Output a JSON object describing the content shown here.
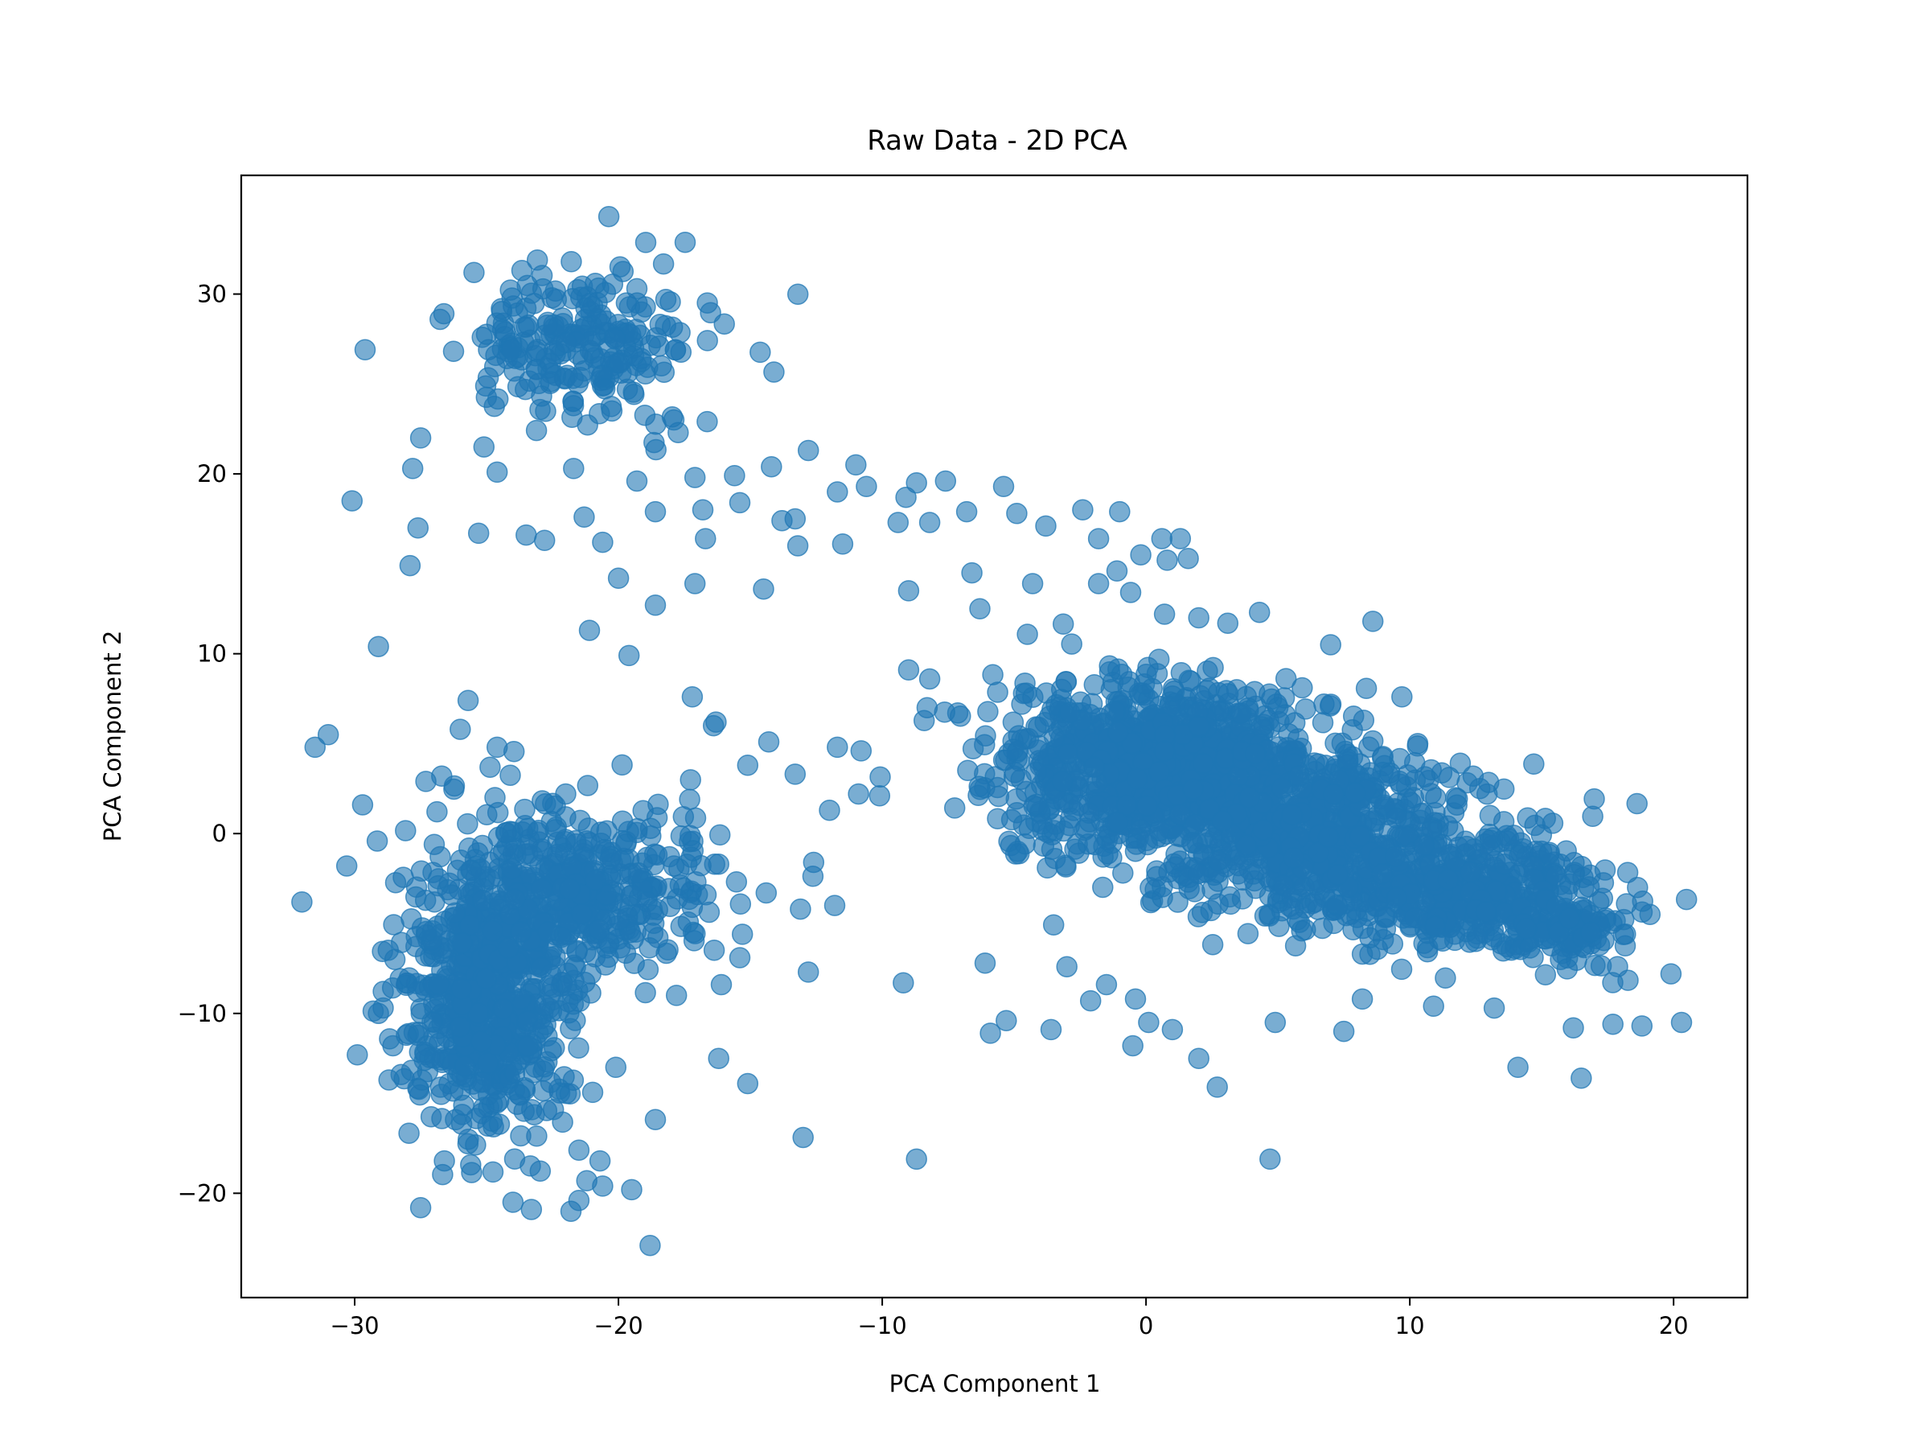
{
  "chart_data": {
    "type": "scatter",
    "title": "Raw Data - 2D PCA",
    "xlabel": "PCA Component 1",
    "ylabel": "PCA Component 2",
    "xlim": [
      -34.3,
      22.8
    ],
    "ylim": [
      -25.8,
      36.6
    ],
    "x_ticks": [
      -30,
      -20,
      -10,
      0,
      10,
      20
    ],
    "y_ticks": [
      -20,
      -10,
      0,
      10,
      20,
      30
    ],
    "x_tick_labels": [
      "−30",
      "−20",
      "−10",
      "0",
      "10",
      "20"
    ],
    "y_tick_labels": [
      "−20",
      "−10",
      "0",
      "10",
      "20",
      "30"
    ],
    "grid": false,
    "legend": "none",
    "marker_color": "#1f77b4",
    "marker_alpha": 0.6,
    "series": [
      {
        "points": [
          [
            -31.5,
            4.8
          ],
          [
            -31.0,
            5.5
          ],
          [
            -32.0,
            -3.8
          ],
          [
            -30.1,
            18.5
          ],
          [
            -29.1,
            10.4
          ],
          [
            -27.5,
            22.0
          ],
          [
            -27.8,
            20.3
          ],
          [
            -27.9,
            14.9
          ],
          [
            -27.6,
            17.0
          ],
          [
            -25.3,
            16.7
          ],
          [
            -25.1,
            21.5
          ],
          [
            -24.6,
            20.1
          ],
          [
            -23.5,
            16.6
          ],
          [
            -22.8,
            16.3
          ],
          [
            -21.7,
            20.3
          ],
          [
            -21.3,
            17.6
          ],
          [
            -20.6,
            16.2
          ],
          [
            -20.0,
            14.2
          ],
          [
            -21.1,
            11.3
          ],
          [
            -19.6,
            9.9
          ],
          [
            -19.3,
            19.6
          ],
          [
            -18.6,
            17.9
          ],
          [
            -18.6,
            12.7
          ],
          [
            -17.9,
            23.0
          ],
          [
            -17.1,
            19.8
          ],
          [
            -17.1,
            13.9
          ],
          [
            -16.8,
            18.0
          ],
          [
            -16.7,
            16.4
          ],
          [
            -17.2,
            7.6
          ],
          [
            -16.3,
            6.2
          ],
          [
            -15.6,
            19.9
          ],
          [
            -15.4,
            18.4
          ],
          [
            -14.5,
            13.6
          ],
          [
            -14.2,
            20.4
          ],
          [
            -13.8,
            17.4
          ],
          [
            -13.3,
            17.5
          ],
          [
            -13.2,
            16.0
          ],
          [
            -12.8,
            21.3
          ],
          [
            -11.7,
            19.0
          ],
          [
            -11.5,
            16.1
          ],
          [
            -11.0,
            20.5
          ],
          [
            -10.6,
            19.3
          ],
          [
            -9.4,
            17.3
          ],
          [
            -9.1,
            18.7
          ],
          [
            -8.7,
            19.5
          ],
          [
            -8.2,
            17.3
          ],
          [
            -7.6,
            19.6
          ],
          [
            -6.8,
            17.9
          ],
          [
            -5.4,
            19.3
          ],
          [
            -4.9,
            17.8
          ],
          [
            -3.8,
            17.1
          ],
          [
            -2.4,
            18.0
          ],
          [
            -1.8,
            16.4
          ],
          [
            -1.0,
            17.9
          ],
          [
            -0.2,
            15.5
          ],
          [
            0.6,
            16.4
          ],
          [
            1.3,
            16.4
          ],
          [
            1.6,
            15.3
          ],
          [
            0.8,
            15.2
          ],
          [
            -1.1,
            14.6
          ],
          [
            -1.8,
            13.9
          ],
          [
            -4.3,
            13.9
          ],
          [
            -6.3,
            12.5
          ],
          [
            -6.6,
            14.5
          ],
          [
            -9.0,
            13.5
          ],
          [
            -9.0,
            9.1
          ],
          [
            -8.2,
            8.6
          ],
          [
            -8.3,
            7.0
          ],
          [
            -13.3,
            3.3
          ],
          [
            -14.3,
            5.1
          ],
          [
            -15.1,
            3.8
          ],
          [
            -16.4,
            6.0
          ],
          [
            -17.3,
            1.9
          ],
          [
            -12.8,
            -7.7
          ],
          [
            -13.0,
            -16.9
          ],
          [
            -15.1,
            -13.9
          ],
          [
            -16.2,
            -12.5
          ],
          [
            -9.2,
            -8.3
          ],
          [
            -8.7,
            -18.1
          ],
          [
            -11.8,
            -4.0
          ],
          [
            -14.4,
            -3.3
          ],
          [
            -15.3,
            -5.6
          ],
          [
            -15.4,
            -6.9
          ],
          [
            -13.1,
            -4.2
          ],
          [
            -12.6,
            -1.6
          ],
          [
            -11.7,
            4.8
          ],
          [
            -10.8,
            4.6
          ],
          [
            -10.1,
            2.1
          ],
          [
            -10.9,
            2.2
          ],
          [
            -12.0,
            1.3
          ],
          [
            -6.1,
            -7.2
          ],
          [
            -5.9,
            -11.1
          ],
          [
            -5.3,
            -10.4
          ],
          [
            -3.6,
            -10.9
          ],
          [
            -3.0,
            -7.4
          ],
          [
            -2.1,
            -9.3
          ],
          [
            -1.5,
            -8.4
          ],
          [
            -0.4,
            -9.2
          ],
          [
            -0.5,
            -11.8
          ],
          [
            0.1,
            -10.5
          ],
          [
            1.0,
            -10.9
          ],
          [
            2.0,
            -12.5
          ],
          [
            2.7,
            -14.1
          ],
          [
            4.9,
            -10.5
          ],
          [
            4.7,
            -18.1
          ],
          [
            7.5,
            -11.0
          ],
          [
            8.2,
            -9.2
          ],
          [
            10.9,
            -9.6
          ],
          [
            13.2,
            -9.7
          ],
          [
            14.1,
            -13.0
          ],
          [
            16.5,
            -13.6
          ],
          [
            16.2,
            -10.8
          ],
          [
            17.7,
            -10.6
          ],
          [
            18.8,
            -10.7
          ],
          [
            20.3,
            -10.5
          ],
          [
            19.9,
            -7.8
          ],
          [
            12.4,
            3.2
          ],
          [
            10.3,
            5.0
          ],
          [
            9.7,
            7.6
          ],
          [
            7.0,
            10.5
          ],
          [
            8.6,
            11.8
          ],
          [
            4.3,
            12.3
          ],
          [
            3.1,
            11.7
          ],
          [
            2.0,
            12.0
          ],
          [
            0.7,
            12.2
          ],
          [
            -21.5,
            -20.4
          ],
          [
            -20.6,
            -19.6
          ],
          [
            -19.5,
            -19.8
          ],
          [
            -18.8,
            -22.9
          ],
          [
            -21.8,
            -21.0
          ],
          [
            -23.3,
            -20.9
          ],
          [
            -24.0,
            -20.5
          ],
          [
            -27.5,
            -20.8
          ],
          [
            -26.6,
            -18.2
          ],
          [
            -29.9,
            -12.3
          ],
          [
            -29.1,
            -10.0
          ],
          [
            -28.7,
            -13.7
          ],
          [
            -30.3,
            -1.8
          ],
          [
            -29.7,
            1.6
          ],
          [
            -27.3,
            2.9
          ],
          [
            -26.7,
            3.2
          ],
          [
            -26.0,
            5.8
          ],
          [
            -25.7,
            7.4
          ],
          [
            -24.6,
            4.8
          ],
          [
            -22.0,
            2.2
          ],
          [
            -17.9,
            -1.8
          ],
          [
            -17.2,
            -4.1
          ],
          [
            -16.2,
            -1.7
          ],
          [
            -16.1,
            -8.4
          ],
          [
            -17.8,
            -9.0
          ],
          [
            -18.6,
            -15.9
          ],
          [
            -20.1,
            -13.0
          ],
          [
            -21.5,
            -17.6
          ],
          [
            -21.2,
            -19.3
          ],
          [
            -20.7,
            -18.2
          ]
        ]
      }
    ],
    "clusters": [
      {
        "center": [
          -21.3,
          27.5
        ],
        "sd": [
          2.4,
          2.3
        ],
        "count": 230
      },
      {
        "center": [
          -25.0,
          -9.2
        ],
        "sd": [
          1.6,
          4.0
        ],
        "count": 640
      },
      {
        "center": [
          -21.3,
          -3.3
        ],
        "sd": [
          2.3,
          2.4
        ],
        "count": 380
      },
      {
        "center": [
          0.4,
          4.0
        ],
        "sd": [
          3.0,
          2.3
        ],
        "count": 900
      },
      {
        "center": [
          6.0,
          0.0
        ],
        "sd": [
          3.4,
          2.4
        ],
        "count": 700
      },
      {
        "center": [
          12.2,
          -3.2
        ],
        "sd": [
          2.8,
          1.6
        ],
        "count": 420
      },
      {
        "center": [
          16.0,
          -5.6
        ],
        "sd": [
          1.4,
          1.0
        ],
        "count": 90
      }
    ]
  }
}
